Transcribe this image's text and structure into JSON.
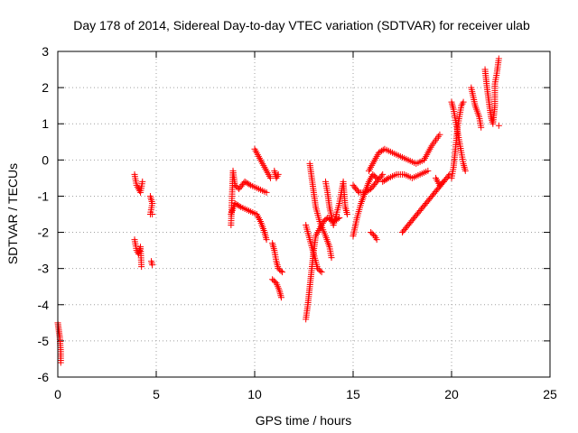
{
  "chart_data": {
    "type": "scatter",
    "title": "Day 178 of 2014, Sidereal Day-to-day VTEC variation (SDTVAR) for receiver ulab",
    "xlabel": "GPS time / hours",
    "ylabel": "SDTVAR / TECUs",
    "xlim": [
      0,
      25
    ],
    "ylim": [
      -6,
      3
    ],
    "x_ticks": [
      0,
      5,
      10,
      15,
      20,
      25
    ],
    "y_ticks": [
      -6,
      -5,
      -4,
      -3,
      -2,
      -1,
      0,
      1,
      2,
      3
    ],
    "grid": true,
    "legend": "none",
    "marker": "plus",
    "series_color": "#ff0000",
    "segments": [
      [
        [
          0.0,
          -4.5
        ],
        [
          0.05,
          -4.7
        ],
        [
          0.1,
          -4.9
        ],
        [
          0.15,
          -5.3
        ],
        [
          0.15,
          -5.6
        ]
      ],
      [
        [
          3.9,
          -0.4
        ],
        [
          4.0,
          -0.7
        ],
        [
          4.1,
          -0.8
        ],
        [
          4.2,
          -0.9
        ],
        [
          4.3,
          -0.6
        ]
      ],
      [
        [
          3.9,
          -2.2
        ],
        [
          4.0,
          -2.5
        ],
        [
          4.1,
          -2.6
        ],
        [
          4.2,
          -2.4
        ],
        [
          4.25,
          -2.95
        ]
      ],
      [
        [
          4.7,
          -1.0
        ],
        [
          4.8,
          -1.2
        ],
        [
          4.7,
          -1.5
        ],
        [
          4.8,
          -1.5
        ]
      ],
      [
        [
          4.75,
          -2.8
        ],
        [
          4.8,
          -2.9
        ]
      ],
      [
        [
          8.8,
          -1.8
        ],
        [
          8.85,
          -1.0
        ],
        [
          8.9,
          -0.3
        ],
        [
          9.0,
          -0.7
        ],
        [
          9.2,
          -0.8
        ],
        [
          9.5,
          -0.6
        ],
        [
          9.8,
          -0.7
        ],
        [
          10.2,
          -0.8
        ],
        [
          10.6,
          -0.9
        ]
      ],
      [
        [
          8.8,
          -1.5
        ],
        [
          9.0,
          -1.2
        ],
        [
          9.3,
          -1.3
        ],
        [
          9.7,
          -1.4
        ],
        [
          10.1,
          -1.5
        ],
        [
          10.3,
          -1.7
        ],
        [
          10.5,
          -2.0
        ],
        [
          10.6,
          -2.2
        ]
      ],
      [
        [
          10.0,
          0.3
        ],
        [
          10.2,
          0.1
        ],
        [
          10.4,
          -0.1
        ],
        [
          10.6,
          -0.3
        ],
        [
          10.8,
          -0.5
        ]
      ],
      [
        [
          11.0,
          -0.3
        ],
        [
          11.1,
          -0.5
        ],
        [
          11.2,
          -0.4
        ]
      ],
      [
        [
          10.9,
          -2.3
        ],
        [
          11.0,
          -2.5
        ],
        [
          11.1,
          -2.8
        ],
        [
          11.2,
          -3.0
        ],
        [
          11.4,
          -3.1
        ]
      ],
      [
        [
          10.9,
          -3.3
        ],
        [
          11.1,
          -3.4
        ],
        [
          11.25,
          -3.6
        ],
        [
          11.35,
          -3.8
        ]
      ],
      [
        [
          12.6,
          -4.4
        ],
        [
          12.7,
          -4.0
        ],
        [
          12.8,
          -3.5
        ],
        [
          12.9,
          -3.0
        ],
        [
          13.0,
          -2.5
        ],
        [
          13.1,
          -2.1
        ],
        [
          13.3,
          -1.9
        ],
        [
          13.5,
          -1.7
        ],
        [
          13.7,
          -1.6
        ],
        [
          14.0,
          -1.7
        ],
        [
          14.3,
          -1.6
        ]
      ],
      [
        [
          12.8,
          -0.1
        ],
        [
          12.9,
          -0.5
        ],
        [
          13.0,
          -0.9
        ],
        [
          13.1,
          -1.3
        ],
        [
          13.3,
          -1.7
        ],
        [
          13.6,
          -2.1
        ],
        [
          13.8,
          -2.4
        ],
        [
          13.9,
          -2.7
        ]
      ],
      [
        [
          12.6,
          -1.8
        ],
        [
          12.8,
          -2.2
        ],
        [
          13.0,
          -2.6
        ],
        [
          13.2,
          -3.0
        ],
        [
          13.4,
          -3.1
        ]
      ],
      [
        [
          13.6,
          -0.6
        ],
        [
          13.7,
          -0.9
        ],
        [
          13.8,
          -1.3
        ],
        [
          14.0,
          -1.8
        ],
        [
          14.3,
          -1.2
        ],
        [
          14.5,
          -0.6
        ],
        [
          14.6,
          -1.3
        ],
        [
          14.7,
          -1.5
        ]
      ],
      [
        [
          15.0,
          -2.1
        ],
        [
          15.2,
          -1.6
        ],
        [
          15.4,
          -1.2
        ],
        [
          15.6,
          -0.9
        ],
        [
          15.8,
          -0.6
        ],
        [
          16.0,
          -0.4
        ],
        [
          16.2,
          -0.5
        ]
      ],
      [
        [
          15.0,
          -0.7
        ],
        [
          15.3,
          -0.9
        ],
        [
          15.6,
          -0.9
        ],
        [
          15.9,
          -0.8
        ],
        [
          16.2,
          -0.6
        ],
        [
          16.5,
          -0.4
        ]
      ],
      [
        [
          15.9,
          -2.0
        ],
        [
          16.1,
          -2.1
        ],
        [
          16.2,
          -2.2
        ]
      ],
      [
        [
          15.8,
          -0.3
        ],
        [
          16.0,
          -0.1
        ],
        [
          16.3,
          0.2
        ],
        [
          16.6,
          0.3
        ],
        [
          17.0,
          0.2
        ],
        [
          17.4,
          0.1
        ],
        [
          17.8,
          0.0
        ],
        [
          18.2,
          -0.1
        ],
        [
          18.6,
          0.0
        ],
        [
          19.0,
          0.4
        ],
        [
          19.4,
          0.7
        ]
      ],
      [
        [
          16.5,
          -0.6
        ],
        [
          16.8,
          -0.5
        ],
        [
          17.2,
          -0.4
        ],
        [
          17.6,
          -0.4
        ],
        [
          18.0,
          -0.5
        ],
        [
          18.4,
          -0.4
        ],
        [
          18.8,
          -0.3
        ]
      ],
      [
        [
          17.5,
          -2.0
        ],
        [
          17.8,
          -1.8
        ],
        [
          18.1,
          -1.6
        ],
        [
          18.4,
          -1.4
        ],
        [
          18.7,
          -1.2
        ],
        [
          19.0,
          -1.0
        ],
        [
          19.3,
          -0.8
        ],
        [
          19.6,
          -0.6
        ],
        [
          19.9,
          -0.4
        ]
      ],
      [
        [
          19.2,
          -0.5
        ],
        [
          19.4,
          -0.7
        ],
        [
          19.6,
          -0.6
        ]
      ],
      [
        [
          20.0,
          1.6
        ],
        [
          20.1,
          1.4
        ],
        [
          20.2,
          1.1
        ],
        [
          20.3,
          0.8
        ],
        [
          20.4,
          0.5
        ],
        [
          20.5,
          0.2
        ],
        [
          20.6,
          -0.1
        ],
        [
          20.7,
          -0.3
        ]
      ],
      [
        [
          20.0,
          -0.5
        ],
        [
          20.1,
          -0.2
        ],
        [
          20.2,
          0.3
        ],
        [
          20.3,
          0.9
        ],
        [
          20.5,
          1.5
        ],
        [
          20.6,
          1.6
        ]
      ],
      [
        [
          21.0,
          2.0
        ],
        [
          21.2,
          1.5
        ],
        [
          21.4,
          1.2
        ],
        [
          21.5,
          0.9
        ]
      ],
      [
        [
          21.7,
          2.5
        ],
        [
          21.8,
          2.0
        ],
        [
          21.9,
          1.6
        ],
        [
          22.0,
          1.2
        ],
        [
          22.1,
          1.0
        ],
        [
          22.2,
          1.5
        ],
        [
          22.2,
          2.1
        ],
        [
          22.3,
          2.4
        ],
        [
          22.4,
          2.8
        ]
      ],
      [
        [
          22.4,
          0.95
        ]
      ]
    ]
  }
}
